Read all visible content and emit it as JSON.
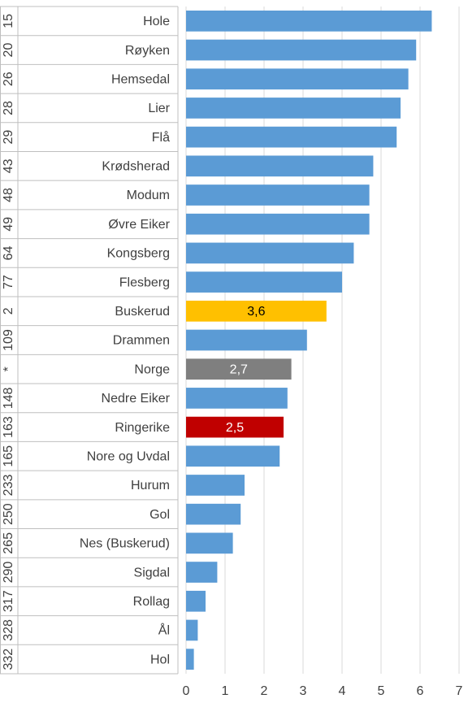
{
  "chart_data": {
    "type": "bar",
    "orientation": "horizontal",
    "categories": [
      "Hole",
      "Røyken",
      "Hemsedal",
      "Lier",
      "Flå",
      "Krødsherad",
      "Modum",
      "Øvre Eiker",
      "Kongsberg",
      "Flesberg",
      "Buskerud",
      "Drammen",
      "Norge",
      "Nedre Eiker",
      "Ringerike",
      "Nore og Uvdal",
      "Hurum",
      "Gol",
      "Nes (Buskerud)",
      "Sigdal",
      "Rollag",
      "Ål",
      "Hol"
    ],
    "ranks": [
      "15",
      "20",
      "26",
      "28",
      "29",
      "43",
      "48",
      "49",
      "64",
      "77",
      "2",
      "109",
      "*",
      "148",
      "163",
      "165",
      "233",
      "250",
      "265",
      "290",
      "317",
      "328",
      "332"
    ],
    "values": [
      6.3,
      5.9,
      5.7,
      5.5,
      5.4,
      4.8,
      4.7,
      4.7,
      4.3,
      4.0,
      3.6,
      3.1,
      2.7,
      2.6,
      2.5,
      2.4,
      1.5,
      1.4,
      1.2,
      0.8,
      0.5,
      0.3,
      0.2
    ],
    "value_labels": [
      null,
      null,
      null,
      null,
      null,
      null,
      null,
      null,
      null,
      null,
      "3,6",
      null,
      "2,7",
      null,
      "2,5",
      null,
      null,
      null,
      null,
      null,
      null,
      null,
      null
    ],
    "colors": [
      "#5b9bd5",
      "#5b9bd5",
      "#5b9bd5",
      "#5b9bd5",
      "#5b9bd5",
      "#5b9bd5",
      "#5b9bd5",
      "#5b9bd5",
      "#5b9bd5",
      "#5b9bd5",
      "#ffc000",
      "#5b9bd5",
      "#7f7f7f",
      "#5b9bd5",
      "#c00000",
      "#5b9bd5",
      "#5b9bd5",
      "#5b9bd5",
      "#5b9bd5",
      "#5b9bd5",
      "#5b9bd5",
      "#5b9bd5",
      "#5b9bd5"
    ],
    "xlim": [
      0,
      7
    ],
    "xticks": [
      0,
      1,
      2,
      3,
      4,
      5,
      6,
      7
    ],
    "grid": true
  }
}
